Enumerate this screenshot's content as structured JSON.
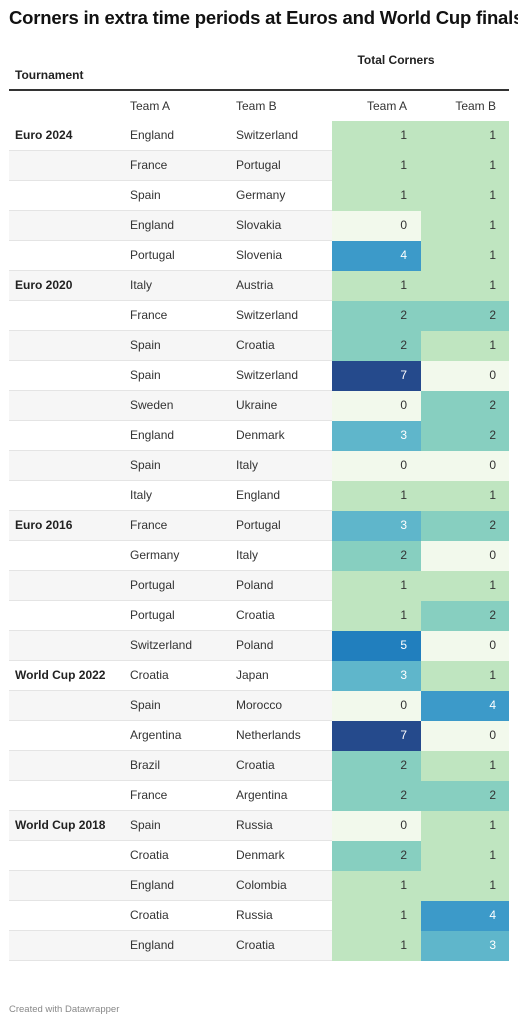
{
  "title": "Corners in extra time periods at Euros and World Cup finals",
  "footer": "Created with Datawrapper",
  "chart_data": {
    "type": "table",
    "header": {
      "tournament": "Tournament",
      "total_corners": "Total Corners"
    },
    "columns": [
      "Team A",
      "Team B",
      "Team A",
      "Team B"
    ],
    "colors": {
      "0": "#f2f9ec",
      "1": "#bfe5c0",
      "2": "#87cfc0",
      "3": "#5fb6cb",
      "4": "#3c9ac9",
      "5": "#217fbe",
      "7": "#254a8c",
      "text_dark": "#333333",
      "text_light": "#ffffff"
    },
    "rows": [
      {
        "tournament": "Euro 2024",
        "team_a": "England",
        "team_b": "Switzerland",
        "corners_a": 1,
        "corners_b": 1
      },
      {
        "tournament": "",
        "team_a": "France",
        "team_b": "Portugal",
        "corners_a": 1,
        "corners_b": 1
      },
      {
        "tournament": "",
        "team_a": "Spain",
        "team_b": "Germany",
        "corners_a": 1,
        "corners_b": 1
      },
      {
        "tournament": "",
        "team_a": "England",
        "team_b": "Slovakia",
        "corners_a": 0,
        "corners_b": 1
      },
      {
        "tournament": "",
        "team_a": "Portugal",
        "team_b": "Slovenia",
        "corners_a": 4,
        "corners_b": 1
      },
      {
        "tournament": "Euro 2020",
        "team_a": "Italy",
        "team_b": "Austria",
        "corners_a": 1,
        "corners_b": 1
      },
      {
        "tournament": "",
        "team_a": "France",
        "team_b": "Switzerland",
        "corners_a": 2,
        "corners_b": 2
      },
      {
        "tournament": "",
        "team_a": "Spain",
        "team_b": "Croatia",
        "corners_a": 2,
        "corners_b": 1
      },
      {
        "tournament": "",
        "team_a": "Spain",
        "team_b": "Switzerland",
        "corners_a": 7,
        "corners_b": 0
      },
      {
        "tournament": "",
        "team_a": "Sweden",
        "team_b": "Ukraine",
        "corners_a": 0,
        "corners_b": 2
      },
      {
        "tournament": "",
        "team_a": "England",
        "team_b": "Denmark",
        "corners_a": 3,
        "corners_b": 2
      },
      {
        "tournament": "",
        "team_a": "Spain",
        "team_b": "Italy",
        "corners_a": 0,
        "corners_b": 0
      },
      {
        "tournament": "",
        "team_a": "Italy",
        "team_b": "England",
        "corners_a": 1,
        "corners_b": 1
      },
      {
        "tournament": "Euro 2016",
        "team_a": "France",
        "team_b": "Portugal",
        "corners_a": 3,
        "corners_b": 2
      },
      {
        "tournament": "",
        "team_a": "Germany",
        "team_b": "Italy",
        "corners_a": 2,
        "corners_b": 0
      },
      {
        "tournament": "",
        "team_a": "Portugal",
        "team_b": "Poland",
        "corners_a": 1,
        "corners_b": 1
      },
      {
        "tournament": "",
        "team_a": "Portugal",
        "team_b": "Croatia",
        "corners_a": 1,
        "corners_b": 2
      },
      {
        "tournament": "",
        "team_a": "Switzerland",
        "team_b": "Poland",
        "corners_a": 5,
        "corners_b": 0
      },
      {
        "tournament": "World Cup 2022",
        "team_a": "Croatia",
        "team_b": "Japan",
        "corners_a": 3,
        "corners_b": 1
      },
      {
        "tournament": "",
        "team_a": "Spain",
        "team_b": "Morocco",
        "corners_a": 0,
        "corners_b": 4
      },
      {
        "tournament": "",
        "team_a": "Argentina",
        "team_b": "Netherlands",
        "corners_a": 7,
        "corners_b": 0
      },
      {
        "tournament": "",
        "team_a": "Brazil",
        "team_b": "Croatia",
        "corners_a": 2,
        "corners_b": 1
      },
      {
        "tournament": "",
        "team_a": "France",
        "team_b": "Argentina",
        "corners_a": 2,
        "corners_b": 2
      },
      {
        "tournament": "World Cup 2018",
        "team_a": "Spain",
        "team_b": "Russia",
        "corners_a": 0,
        "corners_b": 1
      },
      {
        "tournament": "",
        "team_a": "Croatia",
        "team_b": "Denmark",
        "corners_a": 2,
        "corners_b": 1
      },
      {
        "tournament": "",
        "team_a": "England",
        "team_b": "Colombia",
        "corners_a": 1,
        "corners_b": 1
      },
      {
        "tournament": "",
        "team_a": "Croatia",
        "team_b": "Russia",
        "corners_a": 1,
        "corners_b": 4
      },
      {
        "tournament": "",
        "team_a": "England",
        "team_b": "Croatia",
        "corners_a": 1,
        "corners_b": 3
      }
    ]
  }
}
